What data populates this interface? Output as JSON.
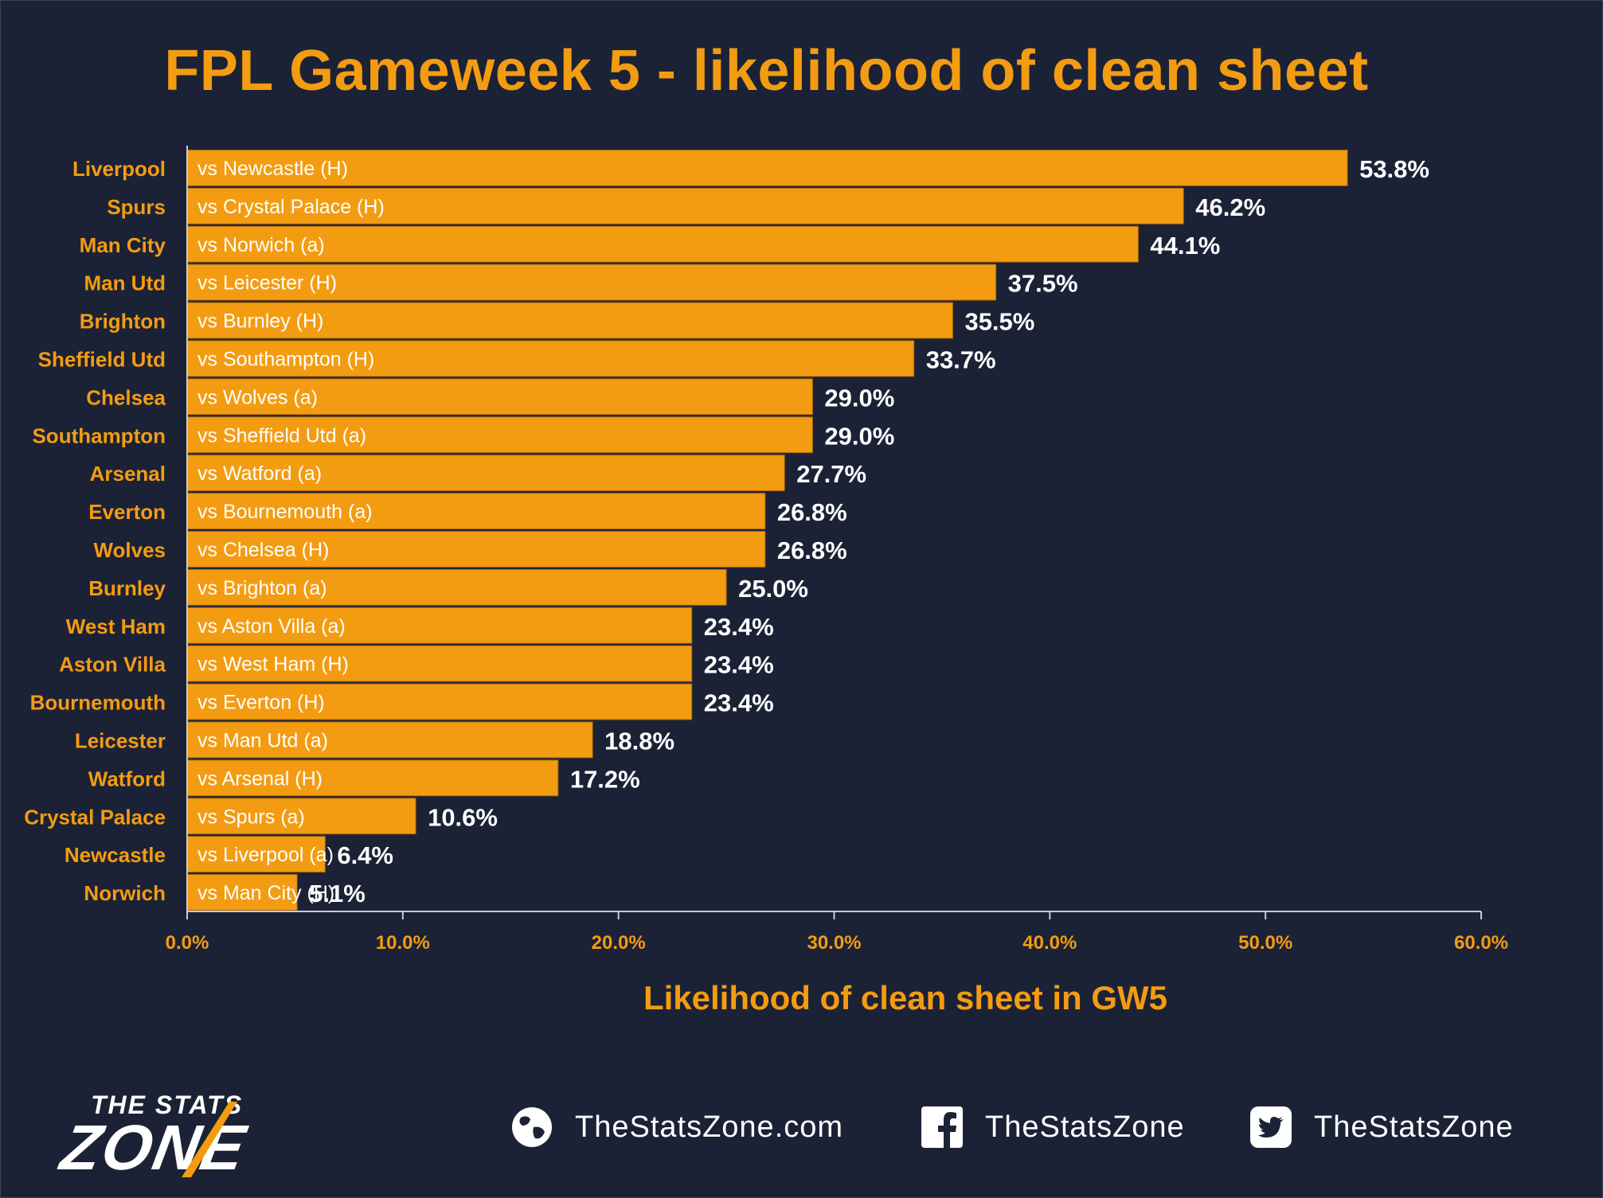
{
  "chart_data": {
    "type": "bar",
    "orientation": "horizontal",
    "title": "FPL Gameweek 5 - likelihood of clean sheet",
    "xlabel": "Likelihood of clean sheet in GW5",
    "ylabel": "",
    "xlim": [
      0,
      60
    ],
    "x_ticks": [
      "0.0%",
      "10.0%",
      "20.0%",
      "30.0%",
      "40.0%",
      "50.0%",
      "60.0%"
    ],
    "categories": [
      "Liverpool",
      "Spurs",
      "Man City",
      "Man Utd",
      "Brighton",
      "Sheffield Utd",
      "Chelsea",
      "Southampton",
      "Arsenal",
      "Everton",
      "Wolves",
      "Burnley",
      "West Ham",
      "Aston Villa",
      "Bournemouth",
      "Leicester",
      "Watford",
      "Crystal Palace",
      "Newcastle",
      "Norwich"
    ],
    "fixtures": [
      "vs Newcastle (H)",
      "vs Crystal Palace (H)",
      "vs Norwich (a)",
      "vs Leicester (H)",
      "vs Burnley (H)",
      "vs Southampton (H)",
      "vs Wolves (a)",
      "vs Sheffield Utd (a)",
      "vs Watford (a)",
      "vs Bournemouth (a)",
      "vs Chelsea (H)",
      "vs Brighton (a)",
      "vs Aston Villa (a)",
      "vs West Ham (H)",
      "vs Everton (H)",
      "vs Man Utd (a)",
      "vs Arsenal (H)",
      "vs Spurs (a)",
      "vs Liverpool (a)",
      "vs Man City (H)"
    ],
    "values": [
      53.8,
      46.2,
      44.1,
      37.5,
      35.5,
      33.7,
      29.0,
      29.0,
      27.7,
      26.8,
      26.8,
      25.0,
      23.4,
      23.4,
      23.4,
      18.8,
      17.2,
      10.6,
      6.4,
      5.1
    ],
    "value_labels": [
      "53.8%",
      "46.2%",
      "44.1%",
      "37.5%",
      "35.5%",
      "33.7%",
      "29.0%",
      "29.0%",
      "27.7%",
      "26.8%",
      "26.8%",
      "25.0%",
      "23.4%",
      "23.4%",
      "23.4%",
      "18.8%",
      "17.2%",
      "10.6%",
      "6.4%",
      "5.1%"
    ],
    "grid": false,
    "legend": "none",
    "colors": {
      "background": "#1c2236",
      "bar": "#f39c12",
      "category_text": "#f39c12",
      "value_text": "#ffffff",
      "axis": "#c9ccd4"
    }
  },
  "footer": {
    "logo_top": "THE STATS",
    "logo_main": "ZONE",
    "website": "TheStatsZone.com",
    "facebook": "TheStatsZone",
    "twitter": "TheStatsZone",
    "icons": [
      "globe-icon",
      "facebook-icon",
      "twitter-icon"
    ]
  }
}
